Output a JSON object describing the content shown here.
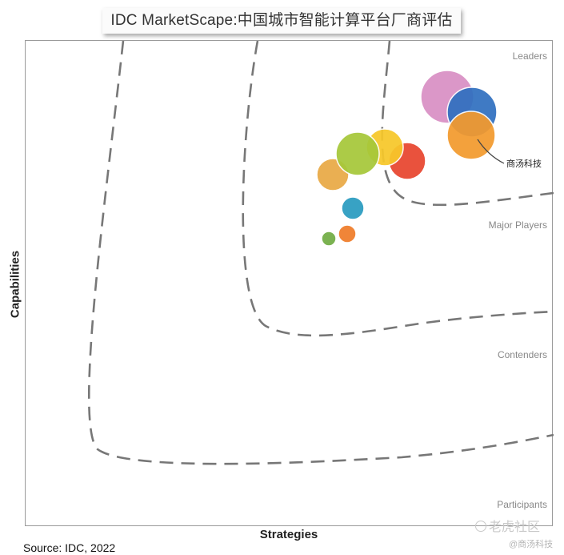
{
  "title": "IDC MarketScape:中国城市智能计算平台厂商评估",
  "source": "Source: IDC, 2022",
  "watermark": "老虎社区",
  "watermark_sub": "@商汤科技",
  "chart_data": {
    "type": "scatter",
    "subtype": "bubble",
    "xlabel": "Strategies",
    "ylabel": "Capabilities",
    "categories": [
      "Leaders",
      "Major Players",
      "Contenders",
      "Participants"
    ],
    "annotations": [
      {
        "text": "商汤科技",
        "target": "orange-large-bubble"
      }
    ],
    "grid": false,
    "legend": "none",
    "colors": {
      "pink": "#d98fc4",
      "blue": "#2f6fc0",
      "orange": "#f39a2e",
      "green": "#a6c83a",
      "yellow": "#f7c82a",
      "red": "#e8452f",
      "light_orange": "#e9aa45",
      "teal": "#2a9bc0",
      "small_orange": "#ef7c2a",
      "small_green": "#72ad44",
      "boundary": "#777777"
    }
  }
}
